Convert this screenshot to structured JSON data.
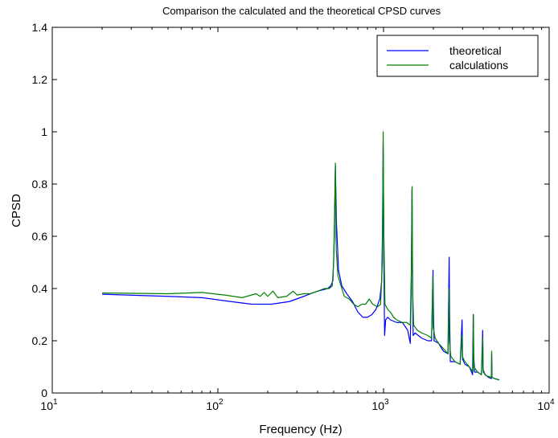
{
  "chart_data": {
    "type": "line",
    "title": "Comparison the calculated and the theoretical CPSD curves",
    "xlabel": "Frequency (Hz)",
    "ylabel": "CPSD",
    "xscale": "log",
    "xlim": [
      10,
      10000
    ],
    "ylim": [
      0,
      1.4
    ],
    "grid": false,
    "legend_position": "top-right",
    "x_ticks": [
      {
        "value": 10,
        "base": "10",
        "exp": "1"
      },
      {
        "value": 100,
        "base": "10",
        "exp": "2"
      },
      {
        "value": 1000,
        "base": "10",
        "exp": "3"
      },
      {
        "value": 10000,
        "base": "10",
        "exp": "4"
      }
    ],
    "y_ticks": [
      {
        "value": 0,
        "label": "0"
      },
      {
        "value": 0.2,
        "label": "0.2"
      },
      {
        "value": 0.4,
        "label": "0.4"
      },
      {
        "value": 0.6,
        "label": "0.6"
      },
      {
        "value": 0.8,
        "label": "0.8"
      },
      {
        "value": 1.0,
        "label": "1"
      },
      {
        "value": 1.2,
        "label": "1.2"
      },
      {
        "value": 1.4,
        "label": "1.4"
      }
    ],
    "series": [
      {
        "name": "theoretical",
        "color": "#0000ff",
        "points": [
          [
            20,
            0.378
          ],
          [
            50,
            0.37
          ],
          [
            80,
            0.365
          ],
          [
            120,
            0.35
          ],
          [
            160,
            0.34
          ],
          [
            210,
            0.34
          ],
          [
            270,
            0.35
          ],
          [
            330,
            0.37
          ],
          [
            400,
            0.39
          ],
          [
            460,
            0.4
          ],
          [
            480,
            0.41
          ],
          [
            495,
            0.43
          ],
          [
            505,
            0.6
          ],
          [
            512,
            0.87
          ],
          [
            520,
            0.65
          ],
          [
            535,
            0.47
          ],
          [
            560,
            0.41
          ],
          [
            600,
            0.38
          ],
          [
            650,
            0.35
          ],
          [
            700,
            0.31
          ],
          [
            750,
            0.29
          ],
          [
            800,
            0.29
          ],
          [
            850,
            0.3
          ],
          [
            900,
            0.32
          ],
          [
            950,
            0.36
          ],
          [
            975,
            0.43
          ],
          [
            985,
            0.6
          ],
          [
            995,
            0.95
          ],
          [
            1005,
            0.5
          ],
          [
            1015,
            0.22
          ],
          [
            1030,
            0.28
          ],
          [
            1060,
            0.29
          ],
          [
            1100,
            0.28
          ],
          [
            1200,
            0.27
          ],
          [
            1300,
            0.27
          ],
          [
            1400,
            0.24
          ],
          [
            1450,
            0.19
          ],
          [
            1470,
            0.4
          ],
          [
            1485,
            0.78
          ],
          [
            1498,
            0.4
          ],
          [
            1510,
            0.22
          ],
          [
            1550,
            0.23
          ],
          [
            1700,
            0.21
          ],
          [
            1850,
            0.2
          ],
          [
            1950,
            0.2
          ],
          [
            1990,
            0.47
          ],
          [
            2000,
            0.33
          ],
          [
            2020,
            0.2
          ],
          [
            2150,
            0.19
          ],
          [
            2300,
            0.16
          ],
          [
            2450,
            0.15
          ],
          [
            2490,
            0.52
          ],
          [
            2505,
            0.3
          ],
          [
            2530,
            0.12
          ],
          [
            2700,
            0.12
          ],
          [
            2900,
            0.11
          ],
          [
            2980,
            0.28
          ],
          [
            3000,
            0.13
          ],
          [
            3100,
            0.11
          ],
          [
            3300,
            0.1
          ],
          [
            3450,
            0.07
          ],
          [
            3480,
            0.3
          ],
          [
            3500,
            0.15
          ],
          [
            3550,
            0.08
          ],
          [
            3700,
            0.08
          ],
          [
            3900,
            0.07
          ],
          [
            3970,
            0.24
          ],
          [
            3990,
            0.09
          ],
          [
            4100,
            0.07
          ],
          [
            4300,
            0.06
          ],
          [
            4480,
            0.055
          ],
          [
            4500,
            0.15
          ],
          [
            4520,
            0.06
          ],
          [
            4700,
            0.055
          ],
          [
            5000,
            0.05
          ]
        ]
      },
      {
        "name": "calculations",
        "color": "#008000",
        "points": [
          [
            20,
            0.383
          ],
          [
            50,
            0.38
          ],
          [
            80,
            0.385
          ],
          [
            110,
            0.375
          ],
          [
            140,
            0.365
          ],
          [
            170,
            0.38
          ],
          [
            180,
            0.37
          ],
          [
            190,
            0.385
          ],
          [
            200,
            0.37
          ],
          [
            215,
            0.39
          ],
          [
            230,
            0.365
          ],
          [
            260,
            0.37
          ],
          [
            285,
            0.39
          ],
          [
            300,
            0.375
          ],
          [
            330,
            0.38
          ],
          [
            360,
            0.38
          ],
          [
            400,
            0.39
          ],
          [
            440,
            0.4
          ],
          [
            470,
            0.4
          ],
          [
            490,
            0.41
          ],
          [
            500,
            0.5
          ],
          [
            508,
            0.75
          ],
          [
            512,
            0.88
          ],
          [
            518,
            0.55
          ],
          [
            530,
            0.45
          ],
          [
            560,
            0.4
          ],
          [
            580,
            0.37
          ],
          [
            620,
            0.36
          ],
          [
            660,
            0.34
          ],
          [
            700,
            0.33
          ],
          [
            740,
            0.34
          ],
          [
            780,
            0.34
          ],
          [
            820,
            0.36
          ],
          [
            860,
            0.34
          ],
          [
            920,
            0.33
          ],
          [
            960,
            0.34
          ],
          [
            985,
            0.5
          ],
          [
            995,
            1.0
          ],
          [
            1005,
            0.6
          ],
          [
            1020,
            0.34
          ],
          [
            1060,
            0.32
          ],
          [
            1100,
            0.31
          ],
          [
            1150,
            0.29
          ],
          [
            1200,
            0.28
          ],
          [
            1300,
            0.27
          ],
          [
            1380,
            0.27
          ],
          [
            1450,
            0.26
          ],
          [
            1475,
            0.5
          ],
          [
            1488,
            0.79
          ],
          [
            1498,
            0.4
          ],
          [
            1520,
            0.26
          ],
          [
            1600,
            0.24
          ],
          [
            1700,
            0.23
          ],
          [
            1850,
            0.22
          ],
          [
            1950,
            0.21
          ],
          [
            1985,
            0.45
          ],
          [
            1995,
            0.25
          ],
          [
            2050,
            0.21
          ],
          [
            2150,
            0.19
          ],
          [
            2300,
            0.17
          ],
          [
            2450,
            0.15
          ],
          [
            2480,
            0.4
          ],
          [
            2495,
            0.2
          ],
          [
            2550,
            0.14
          ],
          [
            2700,
            0.12
          ],
          [
            2900,
            0.11
          ],
          [
            2970,
            0.22
          ],
          [
            2990,
            0.14
          ],
          [
            3100,
            0.12
          ],
          [
            3300,
            0.1
          ],
          [
            3470,
            0.08
          ],
          [
            3490,
            0.3
          ],
          [
            3510,
            0.1
          ],
          [
            3700,
            0.08
          ],
          [
            3900,
            0.07
          ],
          [
            3975,
            0.21
          ],
          [
            3995,
            0.08
          ],
          [
            4200,
            0.065
          ],
          [
            4480,
            0.06
          ],
          [
            4495,
            0.16
          ],
          [
            4515,
            0.06
          ],
          [
            4700,
            0.055
          ],
          [
            5000,
            0.05
          ]
        ]
      }
    ]
  }
}
